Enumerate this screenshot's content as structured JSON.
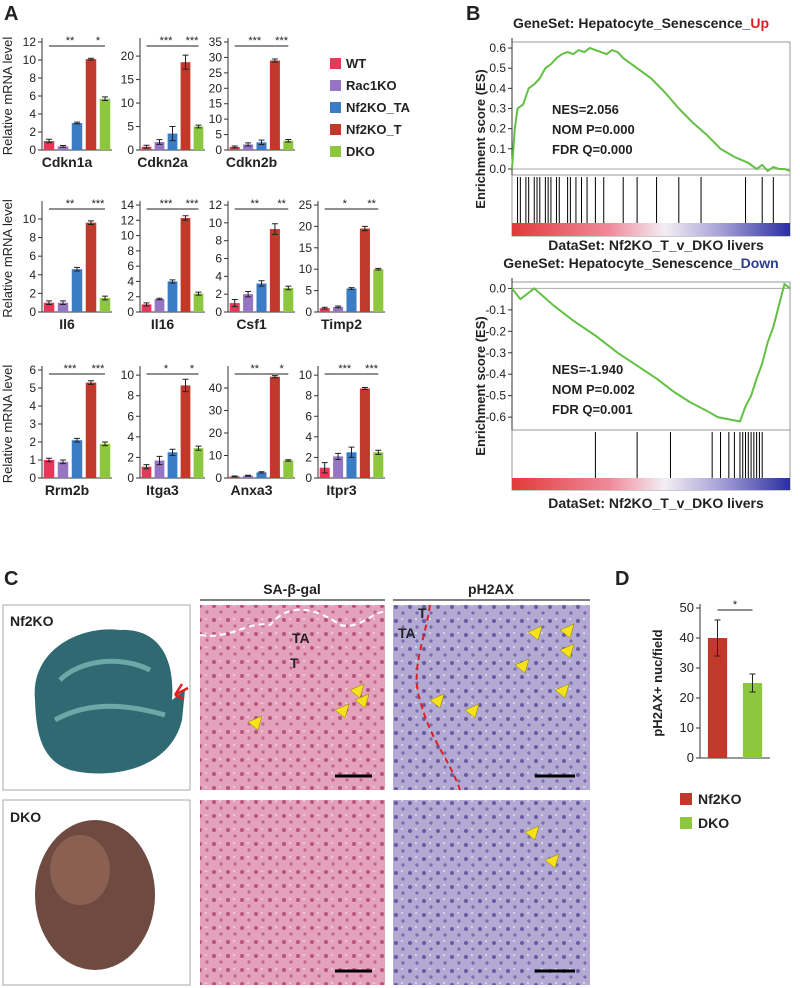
{
  "panel_labels": [
    "A",
    "B",
    "C",
    "D"
  ],
  "legend": {
    "series": [
      {
        "name": "WT",
        "color": "#e8385a"
      },
      {
        "name": "Rac1KO",
        "color": "#9575c4"
      },
      {
        "name": "Nf2KO_TA",
        "color": "#3b7dc4"
      },
      {
        "name": "Nf2KO_T",
        "color": "#c0392b"
      },
      {
        "name": "DKO",
        "color": "#8dc63f"
      }
    ]
  },
  "chart_data": [
    {
      "type": "bar",
      "title": "Cdkn1a",
      "ylabel": "Relative mRNA level",
      "values": [
        1.0,
        0.4,
        3.0,
        10.1,
        5.7
      ],
      "errors": [
        0.2,
        0.1,
        0.1,
        0.1,
        0.2
      ],
      "ylim": [
        0,
        12
      ],
      "yticks": [
        0,
        2,
        4,
        6,
        8,
        10,
        12
      ],
      "annotations": [
        "**",
        "*"
      ]
    },
    {
      "type": "bar",
      "title": "Cdkn2a",
      "values": [
        0.7,
        1.7,
        3.5,
        18.7,
        5.0
      ],
      "errors": [
        0.3,
        0.5,
        1.5,
        1.5,
        0.3
      ],
      "ylim": [
        0,
        23
      ],
      "yticks": [
        0,
        5,
        10,
        15,
        20
      ],
      "annotations": [
        "***",
        "***"
      ]
    },
    {
      "type": "bar",
      "title": "Cdkn2b",
      "values": [
        1.0,
        1.8,
        2.5,
        29,
        3.0
      ],
      "errors": [
        0.3,
        0.5,
        0.7,
        0.5,
        0.4
      ],
      "ylim": [
        0,
        35
      ],
      "yticks": [
        0,
        5,
        10,
        15,
        20,
        25,
        30,
        35
      ],
      "annotations": [
        "***",
        "***"
      ]
    },
    {
      "type": "bar",
      "title": "Il6",
      "ylabel": "Relative mRNA level",
      "values": [
        1.0,
        1.0,
        4.6,
        9.6,
        1.5
      ],
      "errors": [
        0.2,
        0.2,
        0.2,
        0.2,
        0.2
      ],
      "ylim": [
        0,
        11.5
      ],
      "yticks": [
        0,
        2,
        4,
        6,
        8,
        10
      ],
      "annotations": [
        "**",
        "***"
      ]
    },
    {
      "type": "bar",
      "title": "Il16",
      "values": [
        1.0,
        1.7,
        4.0,
        12.3,
        2.4
      ],
      "errors": [
        0.2,
        0.1,
        0.2,
        0.3,
        0.2
      ],
      "ylim": [
        0,
        14
      ],
      "yticks": [
        0,
        2,
        4,
        6,
        8,
        10,
        12,
        14
      ],
      "annotations": [
        "***",
        "***"
      ]
    },
    {
      "type": "bar",
      "title": "Csf1",
      "values": [
        1.0,
        2.0,
        3.2,
        9.3,
        2.7
      ],
      "errors": [
        0.4,
        0.3,
        0.3,
        0.6,
        0.2
      ],
      "ylim": [
        0,
        12
      ],
      "yticks": [
        0,
        2,
        4,
        6,
        8,
        10,
        12
      ],
      "annotations": [
        "**",
        "**"
      ]
    },
    {
      "type": "bar",
      "title": "Timp2",
      "values": [
        0.9,
        1.2,
        5.5,
        19.5,
        10.0
      ],
      "errors": [
        0.2,
        0.2,
        0.2,
        0.5,
        0.2
      ],
      "ylim": [
        0,
        25
      ],
      "yticks": [
        0,
        5,
        10,
        15,
        20,
        25
      ],
      "annotations": [
        "*",
        "**"
      ]
    },
    {
      "type": "bar",
      "title": "Rrm2b",
      "ylabel": "Relative mRNA level",
      "values": [
        1.0,
        0.9,
        2.1,
        5.3,
        1.9
      ],
      "errors": [
        0.1,
        0.1,
        0.1,
        0.1,
        0.1
      ],
      "ylim": [
        0,
        6
      ],
      "yticks": [
        0,
        1,
        2,
        3,
        4,
        5,
        6
      ],
      "annotations": [
        "***",
        "***"
      ]
    },
    {
      "type": "bar",
      "title": "Itga3",
      "values": [
        1.1,
        1.7,
        2.5,
        9.0,
        2.9
      ],
      "errors": [
        0.2,
        0.4,
        0.3,
        0.6,
        0.2
      ],
      "ylim": [
        0,
        10.5
      ],
      "yticks": [
        0,
        2,
        4,
        6,
        8,
        10
      ],
      "annotations": [
        "*",
        "*"
      ]
    },
    {
      "type": "bar",
      "title": "Anxa3",
      "values": [
        0.7,
        1.0,
        2.5,
        45,
        7.8
      ],
      "errors": [
        0.2,
        0.2,
        0.3,
        0.5,
        0.3
      ],
      "ylim": [
        0,
        48
      ],
      "yticks": [
        0,
        10,
        20,
        30,
        40
      ],
      "annotations": [
        "**",
        "*"
      ]
    },
    {
      "type": "bar",
      "title": "Itpr3",
      "values": [
        1.0,
        2.1,
        2.5,
        8.7,
        2.5
      ],
      "errors": [
        0.5,
        0.3,
        0.5,
        0.1,
        0.2
      ],
      "ylim": [
        0,
        10.5
      ],
      "yticks": [
        0,
        2,
        4,
        6,
        8,
        10
      ],
      "annotations": [
        "***",
        "***"
      ]
    },
    {
      "type": "line",
      "title": "GeneSet: Hepatocyte_Senescence_",
      "title_highlight": "Up",
      "highlight_color": "#e0201f",
      "ylabel": "Enrichment score (ES)",
      "xlabel": "DataSet: Nf2KO_T_v_DKO livers",
      "color": "#62c043",
      "x": [
        0,
        1,
        2,
        4,
        6,
        8,
        10,
        12,
        14,
        16,
        18,
        20,
        22,
        24,
        26,
        28,
        30,
        32,
        34,
        36,
        38,
        40,
        45,
        50,
        55,
        60,
        65,
        70,
        75,
        80,
        85,
        88,
        90,
        92,
        94,
        96,
        98,
        100
      ],
      "values": [
        0,
        0.2,
        0.3,
        0.32,
        0.4,
        0.42,
        0.45,
        0.5,
        0.52,
        0.55,
        0.57,
        0.58,
        0.57,
        0.59,
        0.58,
        0.6,
        0.59,
        0.58,
        0.57,
        0.59,
        0.58,
        0.55,
        0.5,
        0.45,
        0.38,
        0.3,
        0.23,
        0.17,
        0.1,
        0.06,
        0.03,
        0,
        0.02,
        -0.01,
        0.01,
        0,
        0,
        -0.01
      ],
      "hits": [
        2,
        3,
        5,
        6,
        8,
        9,
        10,
        12,
        13,
        14,
        16,
        17,
        20,
        21,
        23,
        25,
        27,
        30,
        33,
        40,
        45,
        52,
        60,
        68,
        84,
        90,
        94
      ],
      "xlim": [
        0,
        100
      ],
      "ylim": [
        -0.03,
        0.63
      ],
      "yticks": [
        {
          "value": 0,
          "label": "0.0"
        },
        0.1,
        0.2,
        0.3,
        0.4,
        0.5,
        0.6
      ],
      "annotations": [
        "NES=2.056",
        "NOM P=0.000",
        "FDR Q=0.000"
      ]
    },
    {
      "type": "line",
      "title": "GeneSet: Hepatocyte_Senescence_",
      "title_highlight": "Down",
      "highlight_color": "#2a3d8f",
      "ylabel": "Enrichment score (ES)",
      "xlabel": "DataSet: Nf2KO_T_v_DKO livers",
      "color": "#62c043",
      "x": [
        0,
        3,
        8,
        15,
        22,
        30,
        38,
        45,
        52,
        58,
        64,
        70,
        74,
        78,
        82,
        84,
        86,
        88,
        90,
        92,
        94,
        96,
        98,
        100
      ],
      "values": [
        0,
        -0.05,
        0,
        -0.08,
        -0.15,
        -0.22,
        -0.3,
        -0.36,
        -0.42,
        -0.48,
        -0.53,
        -0.57,
        -0.6,
        -0.61,
        -0.62,
        -0.55,
        -0.5,
        -0.42,
        -0.35,
        -0.25,
        -0.18,
        -0.08,
        0.02,
        0
      ],
      "hits": [
        30,
        45,
        57,
        72,
        75,
        78,
        80,
        82,
        83,
        84,
        85,
        86,
        87,
        88,
        89,
        90
      ],
      "xlim": [
        0,
        100
      ],
      "ylim": [
        -0.66,
        0.03
      ],
      "yticks": [
        {
          "value": 0,
          "label": "0.0"
        },
        -0.1,
        -0.2,
        -0.3,
        -0.4,
        -0.5,
        -0.6
      ],
      "annotations": [
        "NES=-1.940",
        "NOM P=0.002",
        "FDR Q=0.001"
      ]
    },
    {
      "type": "bar",
      "ylabel": "pH2AX+ nuc/field",
      "categories": [
        "Nf2KO",
        "DKO"
      ],
      "colors": [
        "#c0392b",
        "#8dc63f"
      ],
      "values": [
        40,
        25
      ],
      "errors": [
        6,
        3
      ],
      "ylim": [
        0,
        50
      ],
      "yticks": [
        0,
        10,
        20,
        30,
        40,
        50
      ],
      "annotations": [
        "*"
      ]
    }
  ],
  "panel_c": {
    "columns": [
      "SA-β-gal",
      "pH2AX"
    ],
    "rows": [
      "Nf2KO",
      "DKO"
    ],
    "region_labels": [
      "TA",
      "T",
      "T",
      "TA"
    ]
  }
}
